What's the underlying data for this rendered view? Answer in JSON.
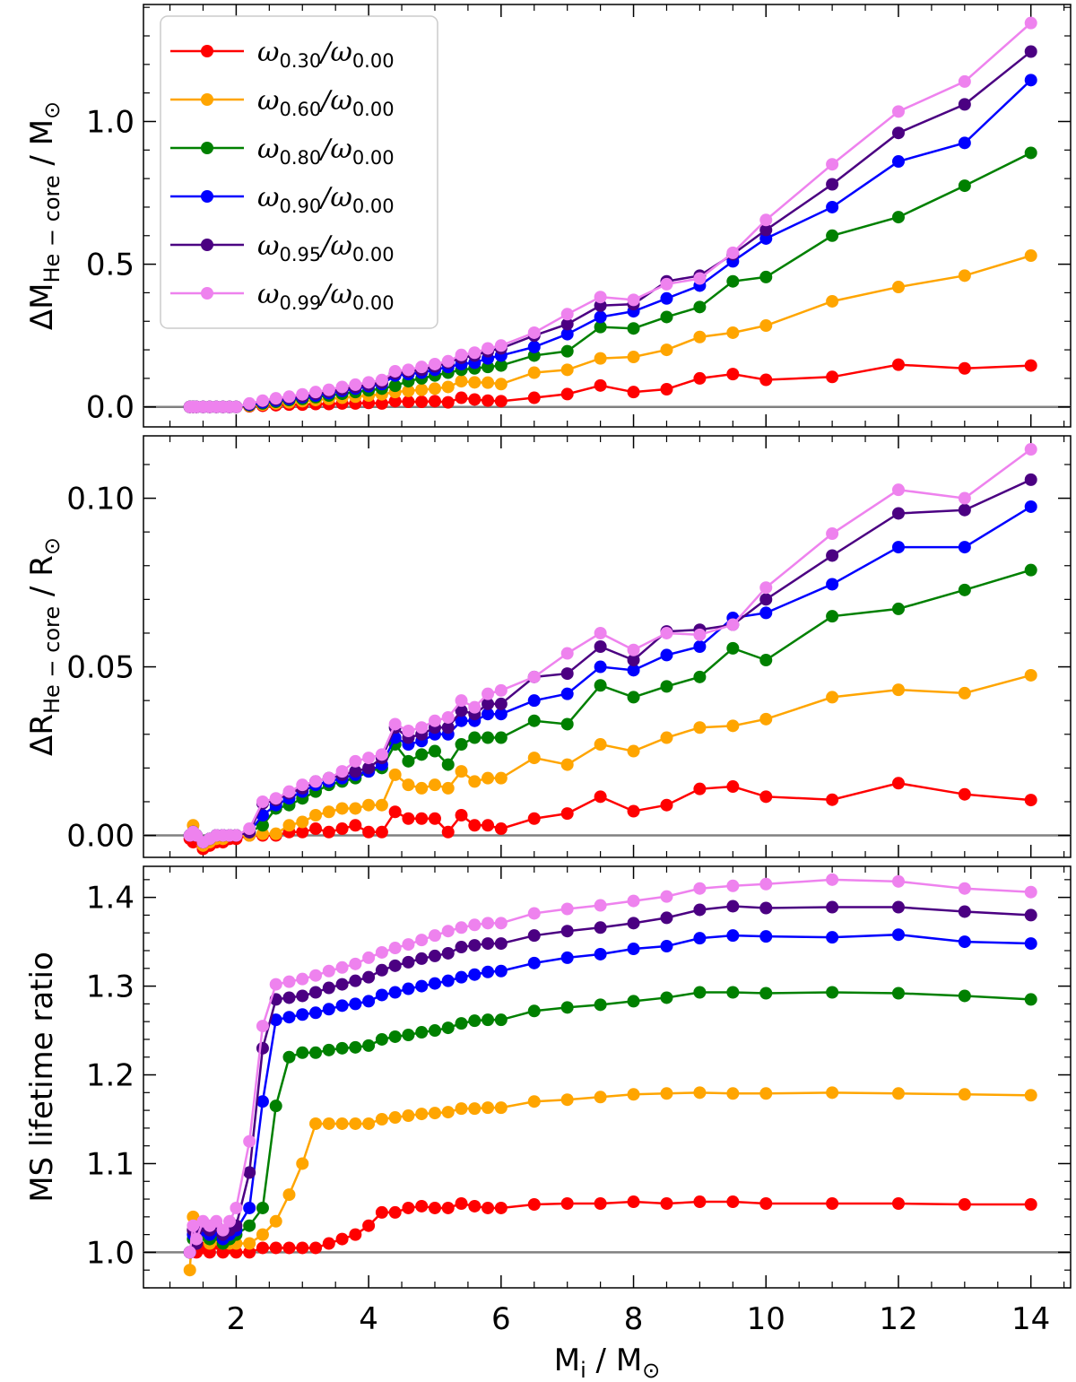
{
  "chart_data": [
    {
      "type": "line",
      "panel": "top",
      "ylabel_main": "ΔM",
      "ylabel_sub": "He − core",
      "ylabel_tail": " / M",
      "ylabel_sun": "⊙",
      "xlim": [
        0.6,
        14.6
      ],
      "ylim": [
        -0.07,
        1.41
      ],
      "yticks": [
        0.0,
        0.5,
        1.0
      ],
      "ytick_labels": [
        "0.0",
        "0.5",
        "1.0"
      ],
      "reference_line": 0,
      "legend": {
        "position": "top-left",
        "entries": [
          {
            "main": "ω",
            "sub": "0.30",
            "slash": "/ω",
            "sub2": "0.00"
          },
          {
            "main": "ω",
            "sub": "0.60",
            "slash": "/ω",
            "sub2": "0.00"
          },
          {
            "main": "ω",
            "sub": "0.80",
            "slash": "/ω",
            "sub2": "0.00"
          },
          {
            "main": "ω",
            "sub": "0.90",
            "slash": "/ω",
            "sub2": "0.00"
          },
          {
            "main": "ω",
            "sub": "0.95",
            "slash": "/ω",
            "sub2": "0.00"
          },
          {
            "main": "ω",
            "sub": "0.99",
            "slash": "/ω",
            "sub2": "0.00"
          }
        ]
      },
      "x": [
        1.3,
        1.35,
        1.4,
        1.5,
        1.6,
        1.7,
        1.8,
        1.9,
        2.0,
        2.2,
        2.4,
        2.6,
        2.8,
        3.0,
        3.2,
        3.4,
        3.6,
        3.8,
        4.0,
        4.2,
        4.4,
        4.6,
        4.8,
        5.0,
        5.2,
        5.4,
        5.6,
        5.8,
        6.0,
        6.5,
        7.0,
        7.5,
        8.0,
        8.5,
        9.0,
        9.5,
        10,
        11,
        12,
        13,
        14
      ],
      "series": [
        {
          "name": "ω0.30/ω0.00",
          "color": "#ff0000",
          "values": [
            0,
            0,
            0,
            0,
            0,
            0,
            0,
            0,
            0,
            0.002,
            0.004,
            0.006,
            0.008,
            0.008,
            0.01,
            0.01,
            0.012,
            0.012,
            0.014,
            0.012,
            0.02,
            0.018,
            0.018,
            0.02,
            0.016,
            0.032,
            0.026,
            0.022,
            0.02,
            0.032,
            0.045,
            0.075,
            0.052,
            0.062,
            0.1,
            0.115,
            0.095,
            0.105,
            0.148,
            0.135,
            0.145
          ]
        },
        {
          "name": "ω0.60/ω0.00",
          "color": "#ffa500",
          "values": [
            0,
            0,
            0,
            0,
            0,
            0,
            0,
            0,
            0,
            0.004,
            0.008,
            0.012,
            0.016,
            0.02,
            0.024,
            0.028,
            0.032,
            0.036,
            0.04,
            0.044,
            0.052,
            0.056,
            0.06,
            0.064,
            0.07,
            0.09,
            0.086,
            0.085,
            0.08,
            0.12,
            0.13,
            0.17,
            0.175,
            0.2,
            0.245,
            0.26,
            0.285,
            0.37,
            0.42,
            0.46,
            0.53
          ]
        },
        {
          "name": "ω0.80/ω0.00",
          "color": "#008000",
          "values": [
            0,
            0,
            0,
            0,
            0,
            0,
            0,
            0,
            0,
            0.006,
            0.012,
            0.018,
            0.024,
            0.028,
            0.034,
            0.04,
            0.046,
            0.052,
            0.058,
            0.064,
            0.074,
            0.09,
            0.1,
            0.11,
            0.12,
            0.13,
            0.135,
            0.14,
            0.145,
            0.18,
            0.195,
            0.28,
            0.275,
            0.315,
            0.35,
            0.44,
            0.455,
            0.6,
            0.665,
            0.775,
            0.89
          ]
        },
        {
          "name": "ω0.90/ω0.00",
          "color": "#0000ff",
          "values": [
            0,
            0,
            0,
            0,
            0,
            0,
            0,
            0,
            0,
            0.008,
            0.016,
            0.022,
            0.028,
            0.034,
            0.04,
            0.048,
            0.056,
            0.064,
            0.072,
            0.08,
            0.11,
            0.115,
            0.12,
            0.13,
            0.14,
            0.15,
            0.155,
            0.17,
            0.18,
            0.21,
            0.255,
            0.315,
            0.335,
            0.38,
            0.425,
            0.51,
            0.59,
            0.7,
            0.86,
            0.925,
            1.145
          ]
        },
        {
          "name": "ω0.95/ω0.00",
          "color": "#4b0082",
          "values": [
            0,
            0,
            0,
            0,
            0,
            0,
            0,
            0,
            0,
            0.01,
            0.02,
            0.026,
            0.032,
            0.038,
            0.046,
            0.054,
            0.062,
            0.07,
            0.078,
            0.086,
            0.118,
            0.124,
            0.13,
            0.142,
            0.155,
            0.172,
            0.18,
            0.195,
            0.205,
            0.25,
            0.29,
            0.355,
            0.36,
            0.44,
            0.46,
            0.535,
            0.62,
            0.78,
            0.96,
            1.06,
            1.245
          ]
        },
        {
          "name": "ω0.99/ω0.00",
          "color": "#ee82ee",
          "values": [
            0,
            0,
            0,
            0,
            0,
            0,
            0,
            0,
            0,
            0.012,
            0.022,
            0.03,
            0.036,
            0.044,
            0.052,
            0.06,
            0.07,
            0.078,
            0.086,
            0.094,
            0.125,
            0.13,
            0.14,
            0.15,
            0.16,
            0.182,
            0.19,
            0.205,
            0.215,
            0.26,
            0.325,
            0.385,
            0.375,
            0.43,
            0.45,
            0.54,
            0.655,
            0.85,
            1.035,
            1.14,
            1.345
          ]
        }
      ]
    },
    {
      "type": "line",
      "panel": "middle",
      "ylabel_main": "ΔR",
      "ylabel_sub": "He − core",
      "ylabel_tail": " / R",
      "ylabel_sun": "⊙",
      "xlim": [
        0.6,
        14.6
      ],
      "ylim": [
        -0.0065,
        0.1185
      ],
      "yticks": [
        0.0,
        0.05,
        0.1
      ],
      "ytick_labels": [
        "0.00",
        "0.05",
        "0.10"
      ],
      "reference_line": 0,
      "x": [
        1.3,
        1.35,
        1.4,
        1.5,
        1.6,
        1.7,
        1.8,
        1.9,
        2.0,
        2.2,
        2.4,
        2.6,
        2.8,
        3.0,
        3.2,
        3.4,
        3.6,
        3.8,
        4.0,
        4.2,
        4.4,
        4.6,
        4.8,
        5.0,
        5.2,
        5.4,
        5.6,
        5.8,
        6.0,
        6.5,
        7.0,
        7.5,
        8.0,
        8.5,
        9.0,
        9.5,
        10,
        11,
        12,
        13,
        14
      ],
      "series": [
        {
          "name": "ω0.30/ω0.00",
          "color": "#ff0000",
          "values": [
            -0.001,
            -0.002,
            -0.001,
            -0.004,
            -0.003,
            -0.002,
            -0.002,
            -0.001,
            -0.001,
            0,
            0,
            0,
            0.001,
            0.001,
            0.002,
            0.001,
            0.002,
            0.003,
            0.001,
            0.001,
            0.007,
            0.005,
            0.005,
            0.005,
            0.001,
            0.006,
            0.003,
            0.003,
            0.002,
            0.005,
            0.0065,
            0.0115,
            0.0072,
            0.009,
            0.0138,
            0.0145,
            0.0115,
            0.0106,
            0.0155,
            0.0122,
            0.0105
          ]
        },
        {
          "name": "ω0.60/ω0.00",
          "color": "#ffa500",
          "values": [
            0,
            0.003,
            0,
            -0.003,
            -0.002,
            -0.001,
            -0.001,
            0,
            0,
            0,
            0.0005,
            0.0005,
            0.003,
            0.004,
            0.006,
            0.007,
            0.008,
            0.008,
            0.009,
            0.009,
            0.018,
            0.015,
            0.014,
            0.015,
            0.014,
            0.019,
            0.016,
            0.017,
            0.017,
            0.023,
            0.021,
            0.027,
            0.025,
            0.029,
            0.032,
            0.0325,
            0.0345,
            0.041,
            0.0432,
            0.0422,
            0.0475
          ]
        },
        {
          "name": "ω0.80/ω0.00",
          "color": "#008000",
          "values": [
            0,
            0.001,
            0,
            -0.002,
            -0.001,
            0,
            0,
            0,
            0,
            0.001,
            0.003,
            0.008,
            0.009,
            0.011,
            0.013,
            0.015,
            0.016,
            0.017,
            0.019,
            0.02,
            0.027,
            0.022,
            0.024,
            0.025,
            0.021,
            0.027,
            0.029,
            0.029,
            0.029,
            0.034,
            0.033,
            0.0445,
            0.041,
            0.0442,
            0.047,
            0.0555,
            0.052,
            0.065,
            0.0672,
            0.0728,
            0.0787
          ]
        },
        {
          "name": "ω0.90/ω0.00",
          "color": "#0000ff",
          "values": [
            0,
            0.001,
            0,
            -0.002,
            -0.001,
            0,
            0,
            0,
            0,
            0.001,
            0.006,
            0.009,
            0.011,
            0.013,
            0.015,
            0.016,
            0.017,
            0.018,
            0.019,
            0.021,
            0.029,
            0.027,
            0.028,
            0.03,
            0.03,
            0.034,
            0.034,
            0.036,
            0.036,
            0.04,
            0.042,
            0.05,
            0.049,
            0.0535,
            0.056,
            0.0645,
            0.066,
            0.0745,
            0.0855,
            0.0855,
            0.0975
          ]
        },
        {
          "name": "ω0.95/ω0.00",
          "color": "#4b0082",
          "values": [
            0,
            0.001,
            0,
            -0.002,
            -0.001,
            0,
            0,
            0,
            0,
            0.001,
            0.0095,
            0.0105,
            0.0125,
            0.014,
            0.016,
            0.017,
            0.018,
            0.019,
            0.02,
            0.023,
            0.032,
            0.029,
            0.03,
            0.032,
            0.032,
            0.037,
            0.036,
            0.039,
            0.039,
            0.047,
            0.048,
            0.056,
            0.052,
            0.0605,
            0.061,
            0.0625,
            0.07,
            0.083,
            0.0955,
            0.0965,
            0.1055
          ]
        },
        {
          "name": "ω0.99/ω0.00",
          "color": "#ee82ee",
          "values": [
            0,
            0.001,
            0,
            -0.002,
            -0.001,
            0,
            0,
            0,
            0,
            0.002,
            0.01,
            0.011,
            0.013,
            0.015,
            0.016,
            0.017,
            0.019,
            0.022,
            0.023,
            0.024,
            0.033,
            0.031,
            0.032,
            0.034,
            0.035,
            0.04,
            0.038,
            0.042,
            0.043,
            0.047,
            0.054,
            0.06,
            0.055,
            0.06,
            0.0595,
            0.0625,
            0.0735,
            0.0895,
            0.1025,
            0.1,
            0.1145
          ]
        }
      ]
    },
    {
      "type": "line",
      "panel": "bottom",
      "ylabel": "MS lifetime ratio",
      "xlabel_main": "M",
      "xlabel_sub": "i",
      "xlabel_tail": " / M",
      "xlabel_sun": "⊙",
      "xlim": [
        0.6,
        14.6
      ],
      "xticks": [
        2,
        4,
        6,
        8,
        10,
        12,
        14
      ],
      "xtick_labels": [
        "2",
        "4",
        "6",
        "8",
        "10",
        "12",
        "14"
      ],
      "ylim": [
        0.96,
        1.435
      ],
      "yticks": [
        1.0,
        1.1,
        1.2,
        1.3,
        1.4
      ],
      "ytick_labels": [
        "1.0",
        "1.1",
        "1.2",
        "1.3",
        "1.4"
      ],
      "reference_line": 1.0,
      "x": [
        1.3,
        1.35,
        1.4,
        1.5,
        1.6,
        1.7,
        1.8,
        1.9,
        2.0,
        2.2,
        2.4,
        2.6,
        2.8,
        3.0,
        3.2,
        3.4,
        3.6,
        3.8,
        4.0,
        4.2,
        4.4,
        4.6,
        4.8,
        5.0,
        5.2,
        5.4,
        5.6,
        5.8,
        6.0,
        6.5,
        7.0,
        7.5,
        8.0,
        8.5,
        9.0,
        9.5,
        10,
        11,
        12,
        13,
        14
      ],
      "series": [
        {
          "name": "ω0.30/ω0.00",
          "color": "#ff0000",
          "values": [
            1.0,
            1.025,
            1.0,
            1.005,
            1.0,
            1.01,
            1.0,
            1.005,
            1.0,
            1.0,
            1.005,
            1.005,
            1.005,
            1.005,
            1.005,
            1.01,
            1.015,
            1.02,
            1.03,
            1.045,
            1.045,
            1.05,
            1.052,
            1.05,
            1.05,
            1.055,
            1.052,
            1.05,
            1.05,
            1.054,
            1.055,
            1.055,
            1.057,
            1.055,
            1.057,
            1.057,
            1.055,
            1.055,
            1.055,
            1.054,
            1.054
          ]
        },
        {
          "name": "ω0.60/ω0.00",
          "color": "#ffa500",
          "values": [
            0.98,
            1.04,
            1.01,
            1.02,
            1.01,
            1.015,
            1.01,
            1.01,
            1.01,
            1.01,
            1.02,
            1.035,
            1.065,
            1.1,
            1.145,
            1.145,
            1.145,
            1.145,
            1.145,
            1.15,
            1.152,
            1.154,
            1.156,
            1.157,
            1.158,
            1.162,
            1.162,
            1.163,
            1.163,
            1.17,
            1.172,
            1.175,
            1.178,
            1.179,
            1.18,
            1.179,
            1.179,
            1.18,
            1.179,
            1.178,
            1.177
          ]
        },
        {
          "name": "ω0.80/ω0.00",
          "color": "#008000",
          "values": [
            1.0,
            1.015,
            1.01,
            1.02,
            1.015,
            1.02,
            1.01,
            1.015,
            1.02,
            1.03,
            1.05,
            1.165,
            1.22,
            1.225,
            1.225,
            1.228,
            1.23,
            1.231,
            1.233,
            1.24,
            1.243,
            1.245,
            1.248,
            1.25,
            1.253,
            1.258,
            1.261,
            1.262,
            1.262,
            1.272,
            1.276,
            1.279,
            1.283,
            1.287,
            1.293,
            1.293,
            1.292,
            1.293,
            1.292,
            1.289,
            1.285
          ]
        },
        {
          "name": "ω0.90/ω0.00",
          "color": "#0000ff",
          "values": [
            1.0,
            1.02,
            1.01,
            1.025,
            1.02,
            1.025,
            1.015,
            1.02,
            1.025,
            1.05,
            1.17,
            1.262,
            1.265,
            1.268,
            1.27,
            1.274,
            1.278,
            1.28,
            1.283,
            1.29,
            1.293,
            1.297,
            1.3,
            1.303,
            1.306,
            1.31,
            1.313,
            1.316,
            1.317,
            1.326,
            1.332,
            1.336,
            1.342,
            1.345,
            1.354,
            1.357,
            1.356,
            1.355,
            1.358,
            1.35,
            1.348
          ]
        },
        {
          "name": "ω0.95/ω0.00",
          "color": "#4b0082",
          "values": [
            1.0,
            1.025,
            1.01,
            1.03,
            1.025,
            1.03,
            1.02,
            1.025,
            1.03,
            1.09,
            1.23,
            1.285,
            1.287,
            1.289,
            1.293,
            1.298,
            1.302,
            1.306,
            1.31,
            1.318,
            1.323,
            1.327,
            1.331,
            1.334,
            1.337,
            1.344,
            1.346,
            1.348,
            1.348,
            1.357,
            1.362,
            1.366,
            1.371,
            1.377,
            1.386,
            1.39,
            1.388,
            1.389,
            1.389,
            1.384,
            1.38
          ]
        },
        {
          "name": "ω0.99/ω0.00",
          "color": "#ee82ee",
          "values": [
            1.0,
            1.03,
            1.015,
            1.035,
            1.03,
            1.035,
            1.025,
            1.035,
            1.05,
            1.125,
            1.255,
            1.302,
            1.305,
            1.308,
            1.312,
            1.317,
            1.321,
            1.325,
            1.332,
            1.338,
            1.343,
            1.347,
            1.352,
            1.357,
            1.362,
            1.366,
            1.369,
            1.371,
            1.371,
            1.382,
            1.387,
            1.391,
            1.396,
            1.401,
            1.41,
            1.413,
            1.415,
            1.42,
            1.418,
            1.41,
            1.406
          ]
        }
      ]
    }
  ]
}
